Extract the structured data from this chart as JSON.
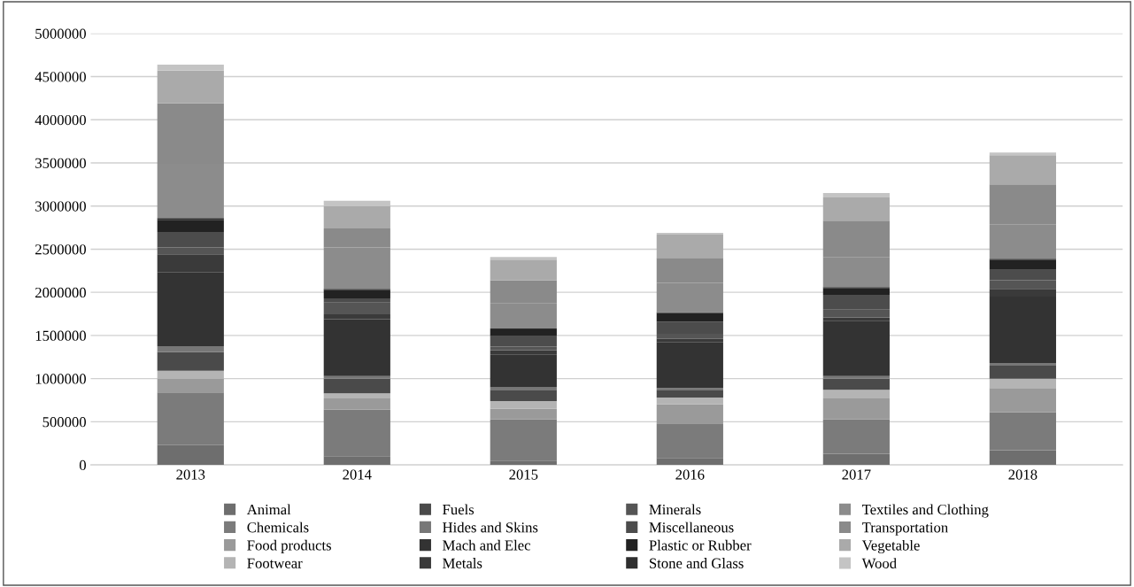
{
  "chart_data": {
    "type": "bar",
    "stacked": true,
    "categories": [
      "2013",
      "2014",
      "2015",
      "2016",
      "2017",
      "2018"
    ],
    "ylim": [
      0,
      5000000
    ],
    "yticks": [
      0,
      500000,
      1000000,
      1500000,
      2000000,
      2500000,
      3000000,
      3500000,
      4000000,
      4500000,
      5000000
    ],
    "grid": "y",
    "legend": "bottom",
    "series": [
      {
        "name": "Animal",
        "color": "#6e6e6e",
        "values": [
          230000,
          100000,
          50000,
          80000,
          130000,
          170000
        ]
      },
      {
        "name": "Chemicals",
        "color": "#7b7b7b",
        "values": [
          610000,
          540000,
          480000,
          400000,
          400000,
          440000
        ]
      },
      {
        "name": "Food products",
        "color": "#9a9a9a",
        "values": [
          155000,
          130000,
          120000,
          220000,
          240000,
          280000
        ]
      },
      {
        "name": "Footwear",
        "color": "#b4b4b4",
        "values": [
          95000,
          60000,
          90000,
          80000,
          100000,
          110000
        ]
      },
      {
        "name": "Fuels",
        "color": "#4a4a4a",
        "values": [
          220000,
          170000,
          130000,
          90000,
          130000,
          150000
        ]
      },
      {
        "name": "Hides and Skins",
        "color": "#777777",
        "values": [
          65000,
          30000,
          30000,
          20000,
          30000,
          30000
        ]
      },
      {
        "name": "Mach and Elec",
        "color": "#333333",
        "values": [
          855000,
          660000,
          380000,
          530000,
          640000,
          770000
        ]
      },
      {
        "name": "Metals",
        "color": "#3a3a3a",
        "values": [
          210000,
          55000,
          50000,
          40000,
          40000,
          90000
        ]
      },
      {
        "name": "Minerals",
        "color": "#555555",
        "values": [
          80000,
          135000,
          40000,
          60000,
          90000,
          100000
        ]
      },
      {
        "name": "Miscellaneous",
        "color": "#4c4c4c",
        "values": [
          180000,
          50000,
          130000,
          140000,
          170000,
          120000
        ]
      },
      {
        "name": "Plastic or Rubber",
        "color": "#222222",
        "values": [
          140000,
          100000,
          70000,
          100000,
          80000,
          120000
        ]
      },
      {
        "name": "Stone and Glass",
        "color": "#2e2e2e",
        "values": [
          20000,
          10000,
          10000,
          10000,
          10000,
          10000
        ]
      },
      {
        "name": "Textiles and Clothing",
        "color": "#8c8c8c",
        "values": [
          630000,
          480000,
          290000,
          340000,
          350000,
          400000
        ]
      },
      {
        "name": "Transportation",
        "color": "#8a8a8a",
        "values": [
          700000,
          220000,
          270000,
          290000,
          420000,
          460000
        ]
      },
      {
        "name": "Vegetable",
        "color": "#aaaaaa",
        "values": [
          380000,
          260000,
          240000,
          270000,
          270000,
          340000
        ]
      },
      {
        "name": "Wood",
        "color": "#c4c4c4",
        "values": [
          70000,
          60000,
          30000,
          20000,
          50000,
          30000
        ]
      }
    ]
  }
}
